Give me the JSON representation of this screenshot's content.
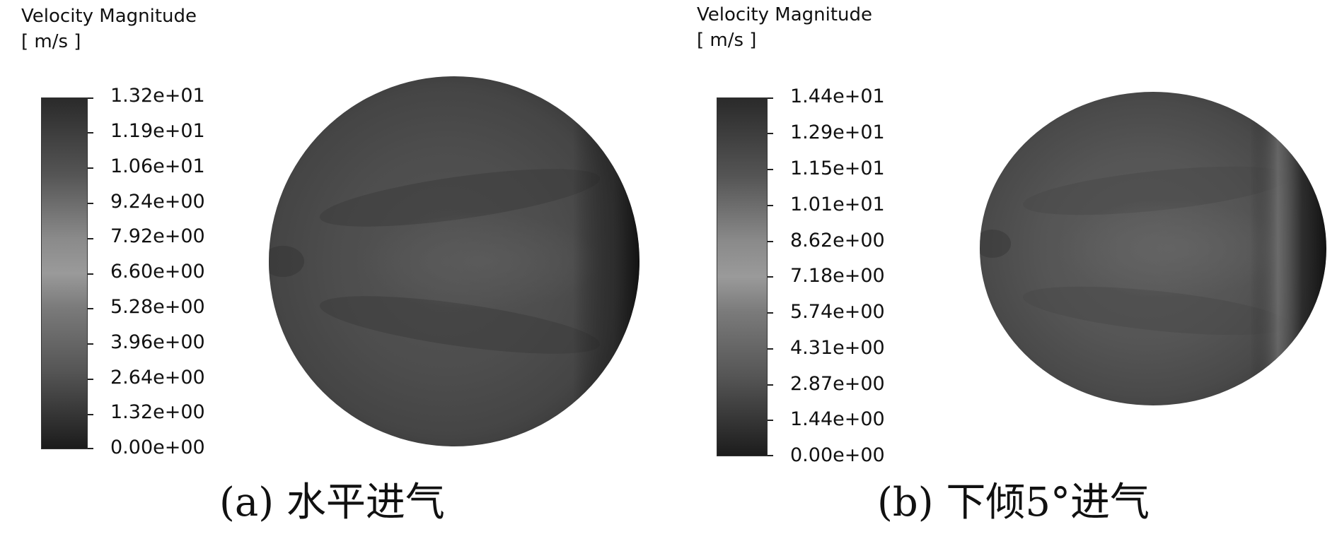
{
  "panels": [
    {
      "id": "a",
      "legend": {
        "title": "Velocity Magnitude",
        "unit": "[ m/s ]",
        "ticks": [
          "1.32e+01",
          "1.19e+01",
          "1.06e+01",
          "9.24e+00",
          "7.92e+00",
          "6.60e+00",
          "5.28e+00",
          "3.96e+00",
          "2.64e+00",
          "1.32e+00",
          "0.00e+00"
        ]
      },
      "caption": "(a) 水平进气"
    },
    {
      "id": "b",
      "legend": {
        "title": "Velocity Magnitude",
        "unit": "[ m/s ]",
        "ticks": [
          "1.44e+01",
          "1.29e+01",
          "1.15e+01",
          "1.01e+01",
          "8.62e+00",
          "7.18e+00",
          "5.74e+00",
          "4.31e+00",
          "2.87e+00",
          "1.44e+00",
          "0.00e+00"
        ]
      },
      "caption": "(b) 下倾5°进气"
    }
  ],
  "colors": {
    "background": "#ffffff",
    "colorbar_high": "#2a2a2a",
    "colorbar_mid": "#9a9a9a",
    "colorbar_low": "#1c1c1c",
    "field_base": "#4a4a4a",
    "field_edge_dark": "#1a1a1a"
  }
}
